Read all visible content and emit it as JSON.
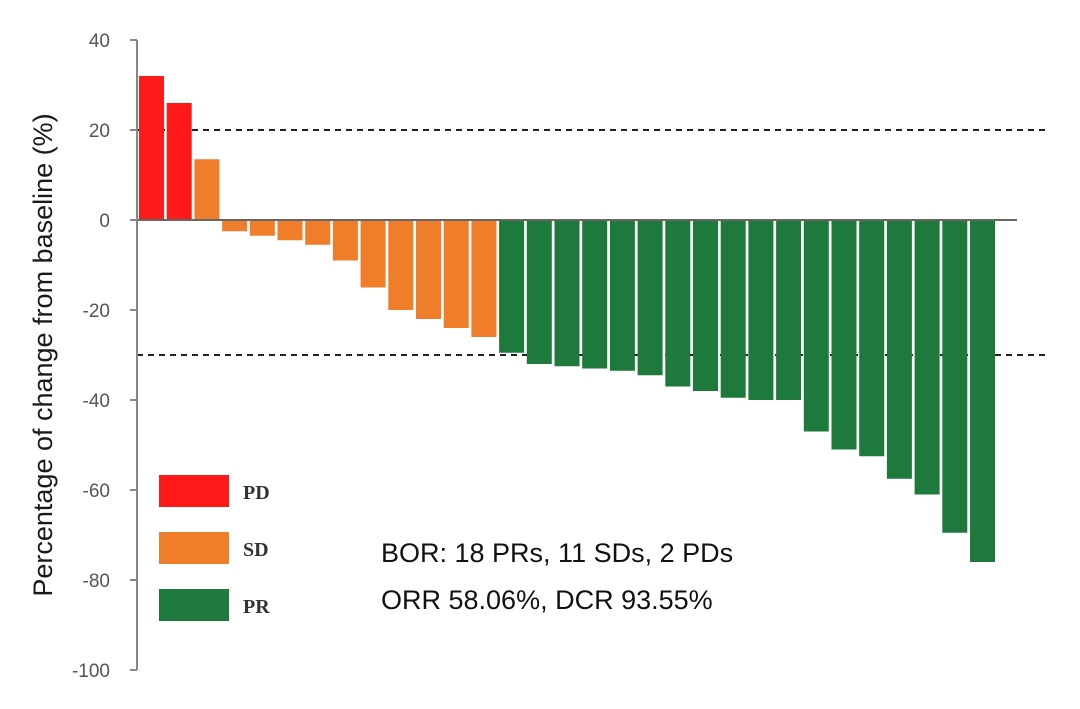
{
  "chart_data": {
    "type": "bar",
    "title": "",
    "xlabel": "",
    "ylabel": "Percentage of change from baseline (%)",
    "ylim": [
      -100,
      40
    ],
    "yticks": [
      40,
      20,
      0,
      -20,
      -40,
      -60,
      -80,
      -100
    ],
    "reference_lines": [
      20,
      -30
    ],
    "grid": false,
    "legend_position": "bottom-left",
    "colors": {
      "PD": "#ff1a1a",
      "SD": "#ef7d2a",
      "PR": "#1e7a3c"
    },
    "legend": [
      {
        "label": "PD"
      },
      {
        "label": "SD"
      },
      {
        "label": "PR"
      }
    ],
    "values": [
      32,
      26,
      13.5,
      -2.5,
      -3.5,
      -4.5,
      -5.5,
      -9,
      -15,
      -20,
      -22,
      -24,
      -26,
      -29.5,
      -32,
      -32.5,
      -33,
      -33.5,
      -34.5,
      -37,
      -38,
      -39.5,
      -40,
      -40,
      -47,
      -51,
      -52.5,
      -57.5,
      -61,
      -69.5,
      -76
    ],
    "response": [
      "PD",
      "PD",
      "SD",
      "SD",
      "SD",
      "SD",
      "SD",
      "SD",
      "SD",
      "SD",
      "SD",
      "SD",
      "SD",
      "PR",
      "PR",
      "PR",
      "PR",
      "PR",
      "PR",
      "PR",
      "PR",
      "PR",
      "PR",
      "PR",
      "PR",
      "PR",
      "PR",
      "PR",
      "PR",
      "PR",
      "PR"
    ],
    "annotations": [
      "BOR: 18 PRs, 11 SDs, 2 PDs",
      "ORR 58.06%, DCR 93.55%"
    ]
  }
}
